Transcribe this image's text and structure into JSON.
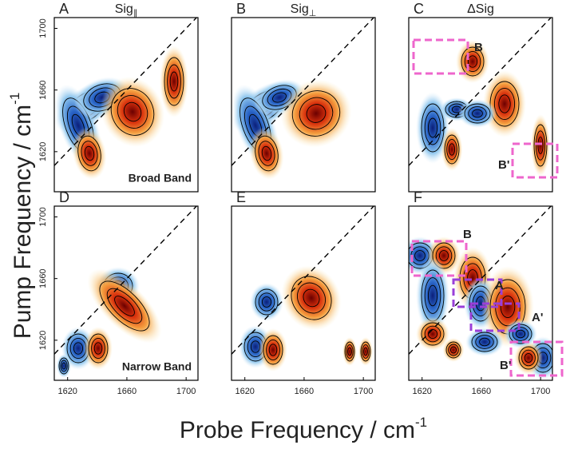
{
  "figure": {
    "ylabel": "Pump Frequency / cm",
    "ylabel_sup": "-1",
    "xlabel": "Probe Frequency / cm",
    "xlabel_sup": "-1"
  },
  "chart_data": [
    {
      "type": "contour",
      "panel": "A",
      "title": "Sig",
      "title_sub": "∥",
      "annotation": "Broad Band",
      "xlim": [
        1611,
        1708
      ],
      "ylim": [
        1594,
        1707
      ],
      "yticks": [
        1620,
        1660,
        1700
      ]
    },
    {
      "type": "contour",
      "panel": "B",
      "title": "Sig",
      "title_sub": "⊥",
      "xlim": [
        1611,
        1708
      ],
      "ylim": [
        1594,
        1707
      ]
    },
    {
      "type": "contour",
      "panel": "C",
      "title": "ΔSig",
      "xlim": [
        1611,
        1708
      ],
      "ylim": [
        1594,
        1707
      ],
      "boxes": [
        {
          "label": "B",
          "color": "#ee66cc"
        },
        {
          "label": "B'",
          "color": "#ee66cc"
        }
      ]
    },
    {
      "type": "contour",
      "panel": "D",
      "annotation": "Narrow Band",
      "xlim": [
        1611,
        1708
      ],
      "ylim": [
        1594,
        1707
      ],
      "yticks": [
        1620,
        1660,
        1700
      ],
      "xticks": [
        1620,
        1660,
        1700
      ]
    },
    {
      "type": "contour",
      "panel": "E",
      "xlim": [
        1611,
        1708
      ],
      "ylim": [
        1594,
        1707
      ],
      "xticks": [
        1620,
        1660,
        1700
      ]
    },
    {
      "type": "contour",
      "panel": "F",
      "xlim": [
        1611,
        1708
      ],
      "ylim": [
        1594,
        1707
      ],
      "xticks": [
        1620,
        1660,
        1700
      ],
      "boxes": [
        {
          "label": "B",
          "color": "#ee66cc"
        },
        {
          "label": "A",
          "color": "#9a3fd8"
        },
        {
          "label": "A'",
          "color": "#9a3fd8"
        },
        {
          "label": "B'",
          "color": "#ee66cc"
        }
      ]
    }
  ]
}
